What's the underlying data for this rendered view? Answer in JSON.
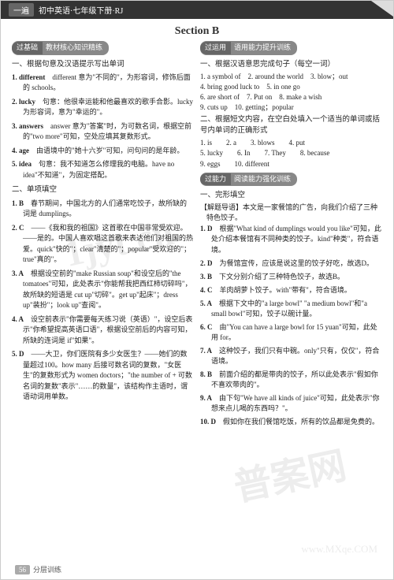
{
  "header": {
    "tag": "一遍",
    "title": "初中英语·七年级下册·RJ"
  },
  "section_title": "Section B",
  "left": {
    "pill_label": "过基础",
    "pill_text": "教材核心知识精练",
    "part1_title": "一、根据句意及汉语提示写出单词",
    "part1": [
      {
        "num": "1.",
        "term": "different",
        "body": "different 意为\"不同的\"，为形容词，修饰后面的 schools。"
      },
      {
        "num": "2.",
        "term": "lucky",
        "body": "句意：他很幸运能和他最喜欢的歌手合影。lucky 为形容词，意为\"幸运的\"。"
      },
      {
        "num": "3.",
        "term": "answers",
        "body": "answer 意为\"答案\"时，为可数名词，根据空前的\"two more\"可知，空处应填其复数形式。"
      },
      {
        "num": "4.",
        "term": "age",
        "body": "由语境中的\"她十六岁\"可知，问句问的是年龄。"
      },
      {
        "num": "5.",
        "term": "idea",
        "body": "句意：我不知道怎么修理我的电脑。have no idea\"不知道\"，为固定搭配。"
      }
    ],
    "part2_title": "二、单项填空",
    "part2": [
      {
        "num": "1.",
        "ans": "B",
        "body": "春节期间，中国北方的人们通常吃饺子，故所缺的词是 dumplings。"
      },
      {
        "num": "2.",
        "ans": "C",
        "body": "——《我和我的祖国》这首歌在中国非常受欢迎。——是的。中国人喜欢唱这首歌来表达他们对祖国的热爱。quick\"快的\"；clear\"清楚的\"；popular\"受欢迎的\"；true\"真的\"。"
      },
      {
        "num": "3.",
        "ans": "A",
        "body": "根据设空前的\"make Russian soup\"和设空后的\"the tomatoes\"可知，此处表示\"你能帮我把西红柿切碎吗\"，故所缺的短语是 cut up\"切碎\"。get up\"起床\"；dress up\"装扮\"；look up\"查阅\"。"
      },
      {
        "num": "4.",
        "ans": "A",
        "body": "设空前表示\"你需要每天练习说（英语）\"，设空后表示\"你希望提高英语口语\"，根据设空前后的内容可知，所缺的连词是 if\"如果\"。"
      },
      {
        "num": "5.",
        "ans": "D",
        "body": "——大卫，你们医院有多少女医生？——她们的数量超过100。how many 后接可数名词的复数，\"女医生\"的复数形式为 women doctors；\"the number of + 可数名词的复数\"表示\"……的数量\"，该结构作主语时，谓语动词用单数。"
      }
    ]
  },
  "right": {
    "pill1_label": "过运用",
    "pill1_text": "语用能力提升训练",
    "part1_title": "一、根据汉语意思完成句子（每空一词）",
    "part1": [
      "1. a symbol of　2. around the world　3. blow；out",
      "4. bring good luck to　5. in one go",
      "6. are short of　7. Put on　8. make a wish",
      "9. cuts up　10. getting；popular"
    ],
    "part2_title": "二、根据短文内容，在空白处填入一个适当的单词或括号内单词的正确形式",
    "grid": [
      [
        "1.",
        "is",
        "2.",
        "a",
        "3.",
        "blows",
        "4.",
        "put"
      ],
      [
        "5.",
        "lucky",
        "6.",
        "In",
        "7.",
        "They",
        "8.",
        "because"
      ],
      [
        "9.",
        "eggs",
        "10.",
        "different",
        "",
        "",
        "",
        ""
      ]
    ],
    "pill2_label": "过能力",
    "pill2_text": "阅读能力强化训练",
    "part3_title": "一、完形填空",
    "lead": "【解题导语】本文是一家餐馆的广告，向我们介绍了三种特色饺子。",
    "part3": [
      {
        "num": "1.",
        "ans": "D",
        "body": "根据\"What kind of dumplings would you like\"可知，此处介绍本餐馆有不同种类的饺子。kind\"种类\"，符合语境。"
      },
      {
        "num": "2.",
        "ans": "D",
        "body": "为餐馆宣传，应该是说这里的饺子好吃，故选D。"
      },
      {
        "num": "3.",
        "ans": "B",
        "body": "下文分别介绍了三种特色饺子，故选B。"
      },
      {
        "num": "4.",
        "ans": "C",
        "body": "羊肉胡萝卜饺子。with\"带有\"，符合语境。"
      },
      {
        "num": "5.",
        "ans": "A",
        "body": "根据下文中的\"a large bowl\" \"a medium bowl\"和\"a small bowl\"可知，饺子以碗计量。"
      },
      {
        "num": "6.",
        "ans": "C",
        "body": "由\"You can have a large bowl for 15 yuan\"可知，此处用 for。"
      },
      {
        "num": "7.",
        "ans": "A",
        "body": "这种饺子，我们只有中碗。only\"只有，仅仅\"，符合语境。"
      },
      {
        "num": "8.",
        "ans": "B",
        "body": "前面介绍的都是带肉的饺子，所以此处表示\"假如你不喜欢带肉的\"。"
      },
      {
        "num": "9.",
        "ans": "A",
        "body": "由下句\"We have all kinds of juice\"可知，此处表示\"你想来点儿喝的东西吗？\"。"
      },
      {
        "num": "10.",
        "ans": "D",
        "body": "假如你在我们餐馆吃饭，所有的饮品都是免费的。"
      }
    ]
  },
  "footer": {
    "pn": "56",
    "label": "分层训练"
  },
  "wm1": "1jyt.cn",
  "wm2": "普案网",
  "wm3": "www.MXqe.COM"
}
